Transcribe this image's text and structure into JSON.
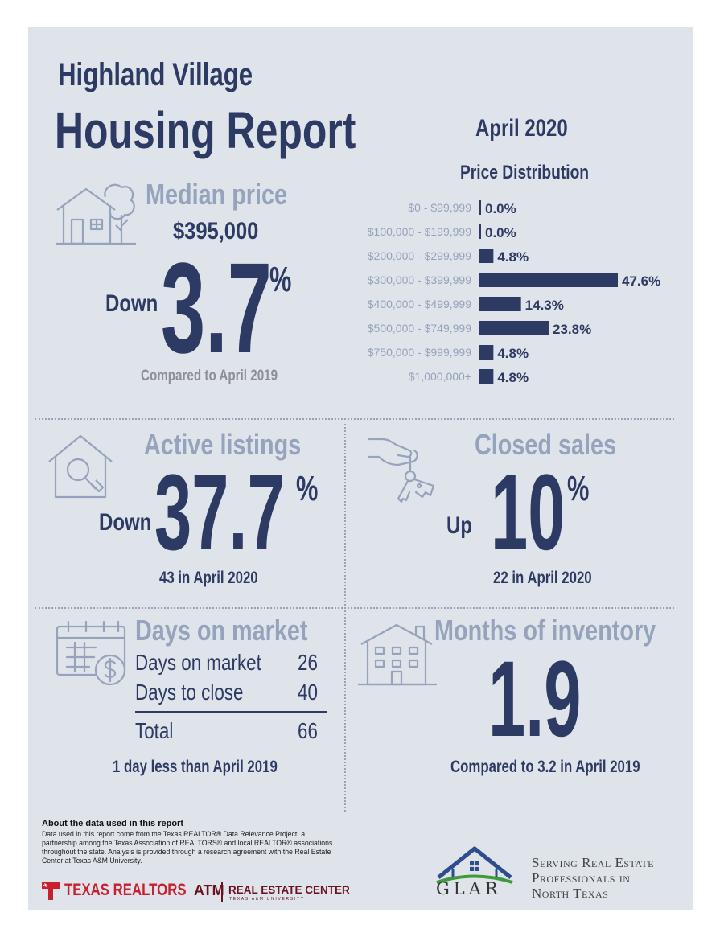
{
  "header": {
    "city": "Highland Village",
    "title": "Housing Report",
    "date": "April 2020"
  },
  "median": {
    "heading": "Median price",
    "value": "$395,000",
    "direction": "Down",
    "change": "3.7",
    "unit": "%",
    "note": "Compared to April 2019",
    "icon": "house-tree-icon"
  },
  "chart_data": {
    "type": "bar",
    "orientation": "horizontal",
    "title": "Price Distribution",
    "categories": [
      "$0 - $99,999",
      "$100,000 - $199,999",
      "$200,000 - $299,999",
      "$300,000 - $399,999",
      "$400,000 - $499,999",
      "$500,000 - $749,999",
      "$750,000 - $999,999",
      "$1,000,000+"
    ],
    "values": [
      0.0,
      0.0,
      4.8,
      47.6,
      14.3,
      23.8,
      4.8,
      4.8
    ],
    "value_labels": [
      "0.0%",
      "0.0%",
      "4.8%",
      "47.6%",
      "14.3%",
      "23.8%",
      "4.8%",
      "4.8%"
    ],
    "bar_color": "#2d3a63",
    "label_color": "#95a3bc"
  },
  "active": {
    "heading": "Active listings",
    "direction": "Down",
    "change": "37.7",
    "unit": "%",
    "note": "43 in April 2020",
    "icon": "house-magnifier-icon"
  },
  "closed": {
    "heading": "Closed sales",
    "direction": "Up",
    "change": "10",
    "unit": "%",
    "note": "22 in April 2020",
    "icon": "hand-keys-icon"
  },
  "dom": {
    "heading": "Days on market",
    "rows": [
      {
        "label": "Days on market",
        "value": "26"
      },
      {
        "label": "Days to close",
        "value": "40"
      }
    ],
    "total_label": "Total",
    "total_value": "66",
    "note": "1 day less than April 2019",
    "icon": "calendar-dollar-icon"
  },
  "moi": {
    "heading": "Months of inventory",
    "value": "1.9",
    "note": "Compared to 3.2 in April 2019",
    "icon": "building-icon"
  },
  "footer": {
    "about_title": "About the data used in this report",
    "about_body": "Data used in this report come from the Texas REALTOR® Data Relevance Project, a partnership among the Texas Association of REALTORS® and local REALTOR® associations throughout the state. Analysis is provided through a research agreement with the Real Estate Center at Texas A&M University.",
    "texas_realtors": "TEXAS REALTORS",
    "tam": "ATM",
    "rec": "REAL ESTATE CENTER",
    "rec_sub": "TEXAS A&M UNIVERSITY",
    "glar": "GLAR",
    "slogan": [
      "Serving Real Estate",
      "Professionals in",
      "North Texas"
    ]
  },
  "colors": {
    "navy": "#2d3a63",
    "pale": "#95a3bc",
    "background": "#dfe3ea"
  }
}
